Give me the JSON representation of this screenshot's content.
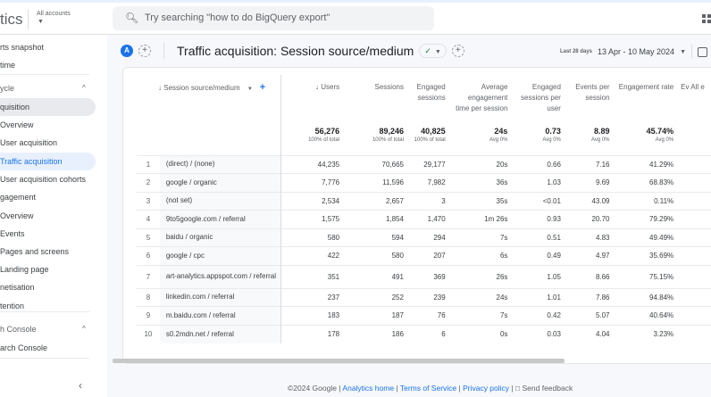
{
  "topbar": {
    "brand": "tics",
    "accounts_label": "All accounts",
    "search_placeholder": "Try searching \"how to do BigQuery export\""
  },
  "sidebar": {
    "items": [
      {
        "label": "rts snapshot",
        "type": "item"
      },
      {
        "label": "time",
        "type": "item"
      },
      {
        "label": "ycle",
        "type": "group"
      },
      {
        "label": "quisition",
        "type": "selected"
      },
      {
        "label": "Overview",
        "type": "item"
      },
      {
        "label": "User acquisition",
        "type": "item"
      },
      {
        "label": "Traffic acquisition",
        "type": "active"
      },
      {
        "label": "User acquisition cohorts",
        "type": "item"
      },
      {
        "label": "gagement",
        "type": "item"
      },
      {
        "label": "Overview",
        "type": "item"
      },
      {
        "label": "Events",
        "type": "item"
      },
      {
        "label": "Pages and screens",
        "type": "item"
      },
      {
        "label": "Landing page",
        "type": "item"
      },
      {
        "label": "netisation",
        "type": "item"
      },
      {
        "label": "tention",
        "type": "item"
      },
      {
        "label": "h Console",
        "type": "group"
      },
      {
        "label": "arch Console",
        "type": "item"
      }
    ]
  },
  "header": {
    "avatar": "A",
    "title": "Traffic acquisition: Session source/medium",
    "date_label": "Last 28 days",
    "date_range": "13 Apr - 10 May 2024"
  },
  "table": {
    "dimension_header": "Session source/medium",
    "columns": [
      "Users",
      "Sessions",
      "Engaged sessions",
      "Average engagement time per session",
      "Engaged sessions per user",
      "Events per session",
      "Engagement rate",
      "Ev All e"
    ],
    "totals": [
      {
        "v": "56,276",
        "s": "100% of total"
      },
      {
        "v": "89,246",
        "s": "100% of total"
      },
      {
        "v": "40,825",
        "s": "100% of total"
      },
      {
        "v": "24s",
        "s": "Avg 0%"
      },
      {
        "v": "0.73",
        "s": "Avg 0%"
      },
      {
        "v": "8.89",
        "s": "Avg 0%"
      },
      {
        "v": "45.74%",
        "s": "Avg 0%"
      }
    ],
    "rows": [
      [
        "1",
        "(direct) / (none)",
        "44,235",
        "70,665",
        "29,177",
        "20s",
        "0.66",
        "7.16",
        "41.29%"
      ],
      [
        "2",
        "google / organic",
        "7,776",
        "11,596",
        "7,982",
        "36s",
        "1.03",
        "9.69",
        "68.83%"
      ],
      [
        "3",
        "(not set)",
        "2,534",
        "2,657",
        "3",
        "35s",
        "<0.01",
        "43.09",
        "0.11%"
      ],
      [
        "4",
        "9to5google.com / referral",
        "1,575",
        "1,854",
        "1,470",
        "1m 26s",
        "0.93",
        "20.70",
        "79.29%"
      ],
      [
        "5",
        "baidu / organic",
        "580",
        "594",
        "294",
        "7s",
        "0.51",
        "4.83",
        "49.49%"
      ],
      [
        "6",
        "google / cpc",
        "422",
        "580",
        "207",
        "6s",
        "0.49",
        "4.97",
        "35.69%"
      ],
      [
        "7",
        "art-analytics.appspot.com / referral",
        "351",
        "491",
        "369",
        "26s",
        "1.05",
        "8.66",
        "75.15%"
      ],
      [
        "8",
        "linkedin.com / referral",
        "237",
        "252",
        "239",
        "24s",
        "1.01",
        "7.86",
        "94.84%"
      ],
      [
        "9",
        "m.baidu.com / referral",
        "183",
        "187",
        "76",
        "7s",
        "0.42",
        "5.07",
        "40.64%"
      ],
      [
        "10",
        "s0.2mdn.net / referral",
        "178",
        "186",
        "6",
        "0s",
        "0.03",
        "4.04",
        "3.23%"
      ]
    ]
  },
  "footer": {
    "copyright": "©2024 Google",
    "links": [
      "Analytics home",
      "Terms of Service",
      "Privacy policy"
    ],
    "feedback": "Send feedback"
  },
  "colors": {
    "accent": "#1a73e8",
    "active_bg": "#e8f0fe",
    "ok": "#188038"
  }
}
